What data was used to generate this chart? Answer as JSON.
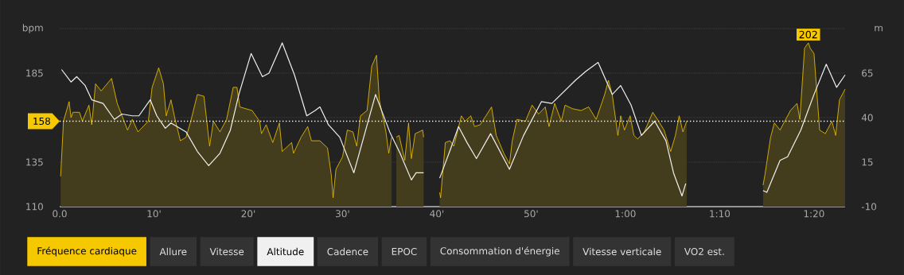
{
  "chart_data": {
    "type": "area",
    "ylabel": "bpm",
    "y2label": "m",
    "xlim": [
      0,
      83.3
    ],
    "xticks": [
      {
        "value": 0,
        "label": "0.0"
      },
      {
        "value": 10,
        "label": "10'"
      },
      {
        "value": 20,
        "label": "20'"
      },
      {
        "value": 30,
        "label": "30'"
      },
      {
        "value": 40,
        "label": "40'"
      },
      {
        "value": 50,
        "label": "50'"
      },
      {
        "value": 60,
        "label": "1:00"
      },
      {
        "value": 70,
        "label": "1:10"
      },
      {
        "value": 80,
        "label": "1:20"
      }
    ],
    "ylim": [
      110,
      210
    ],
    "yticks": [
      110,
      135,
      {
        "value": 160,
        "label": null
      },
      185,
      {
        "value": 210,
        "label": null
      }
    ],
    "y2lim": [
      -10,
      90
    ],
    "y2ticks": [
      -10,
      15,
      40,
      65
    ],
    "grid": "y",
    "legend": "bottom",
    "series": [
      {
        "name": "Fréquence cardiaque",
        "color": "#f5c800",
        "x": [
          0.1,
          0.4,
          1.0,
          1.2,
          1.4,
          2.1,
          2.4,
          3.1,
          3.4,
          3.8,
          4.4,
          5.5,
          6.1,
          7.2,
          7.7,
          8.3,
          9.4,
          9.8,
          10.5,
          11.0,
          11.3,
          11.8,
          12.2,
          12.8,
          13.4,
          13.9,
          14.6,
          15.3,
          15.9,
          16.3,
          17.0,
          17.7,
          18.4,
          18.8,
          19.1,
          20.4,
          21.2,
          21.4,
          21.9,
          22.6,
          23.3,
          23.6,
          24.6,
          24.8,
          25.6,
          26.3,
          26.7,
          27.6,
          28.4,
          28.8,
          29.0,
          29.3,
          30.0,
          30.5,
          31.1,
          31.5,
          31.9,
          32.6,
          33.1,
          33.6,
          33.9,
          34.6,
          34.9,
          35.2,
          35.4,
          35.7,
          36.0,
          36.6,
          37.0,
          37.3,
          37.7,
          38.1,
          38.5,
          38.6,
          39.5,
          40.3,
          40.4,
          40.9,
          41.4,
          41.8,
          42.6,
          43.0,
          43.6,
          44.0,
          44.6,
          45.8,
          46.3,
          47.1,
          47.7,
          48.0,
          48.5,
          49.4,
          50.1,
          50.8,
          51.5,
          51.9,
          52.5,
          53.2,
          53.6,
          54.4,
          55.3,
          56.1,
          56.9,
          57.8,
          58.2,
          58.6,
          59.2,
          59.5,
          59.9,
          60.5,
          60.9,
          61.3,
          62.0,
          62.9,
          63.4,
          64.1,
          64.8,
          65.3,
          65.7,
          66.1,
          66.5,
          70.0,
          74.6,
          74.8,
          75.4,
          75.8,
          76.4,
          76.9,
          77.5,
          78.2,
          78.5,
          79.0,
          79.4,
          79.6,
          80.0,
          80.6,
          81.2,
          81.9,
          82.3,
          82.7,
          83.3
        ],
        "values": [
          127,
          158,
          169,
          160,
          163,
          163,
          158,
          167,
          156,
          179,
          175,
          182,
          168,
          153,
          159,
          152,
          158,
          177,
          188,
          179,
          161,
          170,
          160,
          147,
          149,
          158,
          173,
          172,
          144,
          158,
          152,
          159,
          177,
          177,
          166,
          164,
          158,
          151,
          156,
          146,
          157,
          141,
          146,
          140,
          149,
          155,
          147,
          147,
          143,
          128,
          115,
          131,
          138,
          153,
          152,
          144,
          161,
          164,
          189,
          195,
          170,
          152,
          140,
          149,
          null,
          149,
          150,
          136,
          157,
          137,
          151,
          152,
          153,
          149,
          null,
          118,
          115,
          146,
          147,
          144,
          161,
          158,
          161,
          155,
          156,
          166,
          150,
          140,
          134,
          147,
          159,
          158,
          167,
          162,
          166,
          155,
          168,
          158,
          167,
          165,
          164,
          166,
          159,
          173,
          181,
          173,
          150,
          161,
          153,
          161,
          150,
          148,
          152,
          163,
          159,
          153,
          141,
          150,
          161,
          152,
          158,
          null,
          122,
          128,
          149,
          157,
          153,
          158,
          164,
          168,
          159,
          199,
          202,
          199,
          196,
          153,
          151,
          158,
          150,
          170,
          176
        ]
      },
      {
        "name": "Altitude",
        "type": "line",
        "axis": "y2",
        "color": "#f0f0f0",
        "x": [
          0.2,
          1.2,
          1.8,
          2.7,
          3.4,
          4.6,
          5.8,
          6.6,
          7.7,
          8.4,
          9.6,
          10.3,
          11.2,
          11.8,
          13.4,
          14.6,
          15.8,
          17.0,
          18.1,
          19.0,
          20.3,
          21.5,
          22.2,
          23.6,
          24.9,
          26.2,
          27.1,
          27.6,
          28.5,
          29.7,
          31.2,
          33.5,
          35.0,
          36.1,
          37.3,
          37.8,
          38.6,
          39.5,
          40.3,
          41.5,
          42.3,
          43.2,
          44.2,
          45.7,
          47.7,
          49.2,
          51.1,
          52.2,
          54.7,
          55.8,
          57.1,
          58.6,
          59.5,
          60.6,
          61.7,
          63.1,
          64.3,
          65.1,
          66.0,
          66.4,
          70.0,
          74.6,
          75.0,
          76.4,
          77.2,
          78.6,
          80.0,
          81.3,
          82.4,
          83.3
        ],
        "values": [
          67,
          60,
          63,
          58,
          50,
          48,
          39,
          42,
          41,
          41,
          50,
          41,
          34,
          37,
          32,
          21,
          13,
          20,
          33,
          53,
          76,
          63,
          65,
          82,
          64,
          41,
          44,
          46,
          36,
          29,
          9,
          53,
          32,
          20,
          5,
          9,
          9,
          null,
          6,
          23,
          35,
          26,
          17,
          31,
          11,
          30,
          49,
          48,
          61,
          66,
          71,
          53,
          58,
          47,
          30,
          38,
          27,
          9,
          -4,
          3,
          null,
          -1,
          -2,
          16,
          18,
          33,
          53,
          70,
          57,
          64
        ]
      }
    ],
    "ref_lines": [
      {
        "axis": "y",
        "value": 158,
        "label": "158",
        "color": "#ffffff",
        "line_style": "dotted"
      }
    ],
    "annotations": [
      "Allure",
      "Vitesse",
      "Cadence",
      "EPOC",
      "Consommation d'énergie",
      "Vitesse verticale",
      "VO2 est.",
      {
        "text": "202",
        "x": 79.4,
        "y": 202
      }
    ]
  }
}
